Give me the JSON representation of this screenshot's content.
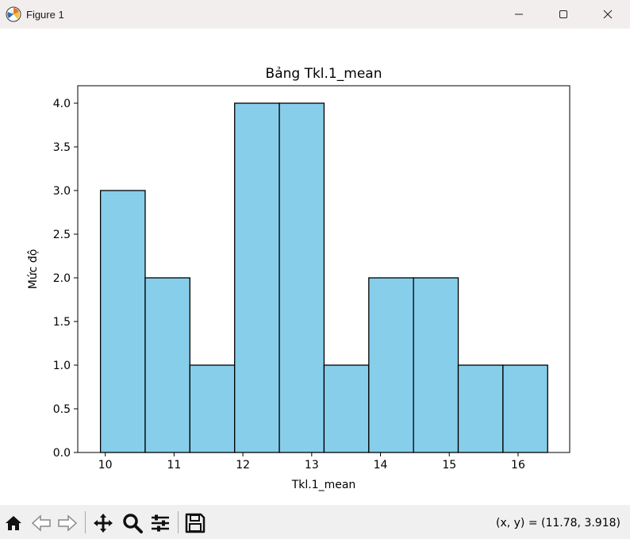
{
  "window": {
    "title": "Figure 1",
    "icon": "matplotlib-logo-icon"
  },
  "window_controls": [
    "minimize-icon",
    "maximize-icon",
    "close-icon"
  ],
  "toolbar": {
    "buttons": [
      "home-icon",
      "back-icon",
      "forward-icon",
      "pan-icon",
      "zoom-icon",
      "configure-subplots-icon",
      "save-icon"
    ],
    "coords_text": "(x, y) = (11.78, 3.918)"
  },
  "colors": {
    "bar_fill": "#87ceeb",
    "bar_edge": "#000000",
    "titlebar_bg": "#f3eeee",
    "toolbar_bg": "#f0f0f0"
  },
  "chart_data": {
    "type": "bar",
    "title": "Bảng Tkl.1_mean",
    "xlabel": "Tkl.1_mean",
    "ylabel": "Mức độ",
    "bins": [
      {
        "left": 9.93,
        "right": 10.58,
        "count": 3
      },
      {
        "left": 10.58,
        "right": 11.23,
        "count": 2
      },
      {
        "left": 11.23,
        "right": 11.88,
        "count": 1
      },
      {
        "left": 11.88,
        "right": 12.53,
        "count": 4
      },
      {
        "left": 12.53,
        "right": 13.18,
        "count": 4
      },
      {
        "left": 13.18,
        "right": 13.83,
        "count": 1
      },
      {
        "left": 13.83,
        "right": 14.48,
        "count": 2
      },
      {
        "left": 14.48,
        "right": 15.13,
        "count": 2
      },
      {
        "left": 15.13,
        "right": 15.78,
        "count": 1
      },
      {
        "left": 15.78,
        "right": 16.43,
        "count": 1
      }
    ],
    "xlim": [
      9.6,
      16.75
    ],
    "ylim": [
      0,
      4.2
    ],
    "xticks": [
      10,
      11,
      12,
      13,
      14,
      15,
      16
    ],
    "xtick_labels": [
      "10",
      "11",
      "12",
      "13",
      "14",
      "15",
      "16"
    ],
    "yticks": [
      0,
      0.5,
      1.0,
      1.5,
      2.0,
      2.5,
      3.0,
      3.5,
      4.0
    ],
    "ytick_labels": [
      "0.0",
      "0.5",
      "1.0",
      "1.5",
      "2.0",
      "2.5",
      "3.0",
      "3.5",
      "4.0"
    ],
    "grid": false,
    "legend": "none"
  }
}
